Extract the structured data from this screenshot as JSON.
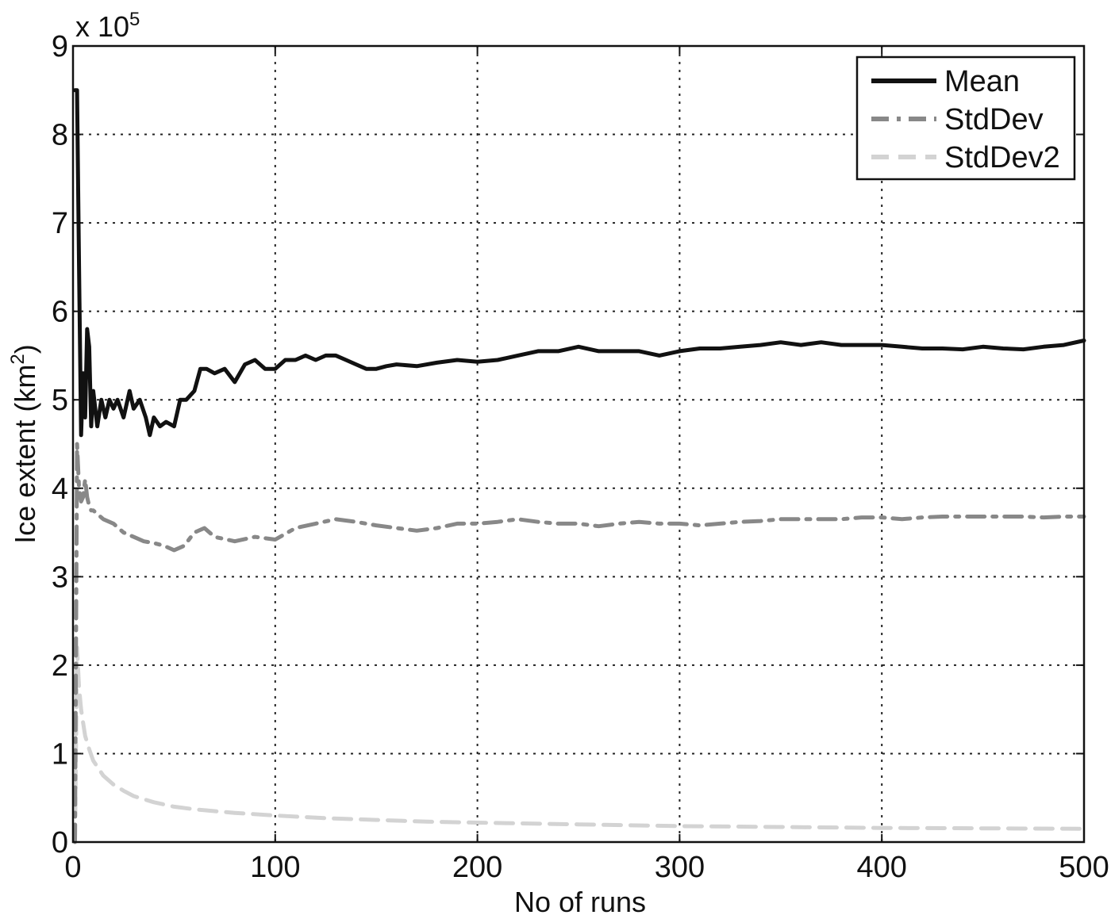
{
  "chart_data": {
    "type": "line",
    "xlabel": "No of runs",
    "ylabel_main": "Ice extent (km",
    "ylabel_sup": "2",
    "ylabel_end": ")",
    "y_multiplier": {
      "base": "x 10",
      "exp": "5"
    },
    "xlim": [
      0,
      500
    ],
    "ylim": [
      0,
      9
    ],
    "xticks": [
      0,
      100,
      200,
      300,
      400,
      500
    ],
    "yticks": [
      0,
      1,
      2,
      3,
      4,
      5,
      6,
      7,
      8,
      9
    ],
    "xtick_labels": [
      "0",
      "100",
      "200",
      "300",
      "400",
      "500"
    ],
    "ytick_labels": [
      "0",
      "1",
      "2",
      "3",
      "4",
      "5",
      "6",
      "7",
      "8",
      "9"
    ],
    "grid": true,
    "legend_position": "top-right",
    "series": [
      {
        "name": "Mean",
        "color": "#111111",
        "style": "solid",
        "x": [
          1,
          2,
          3,
          4,
          5,
          6,
          7,
          8,
          9,
          10,
          12,
          14,
          16,
          18,
          20,
          22,
          25,
          28,
          30,
          33,
          36,
          38,
          40,
          43,
          46,
          50,
          53,
          56,
          60,
          63,
          66,
          70,
          75,
          80,
          85,
          90,
          95,
          100,
          105,
          110,
          115,
          120,
          125,
          130,
          135,
          140,
          145,
          150,
          155,
          160,
          170,
          180,
          190,
          200,
          210,
          220,
          230,
          240,
          250,
          260,
          270,
          280,
          290,
          300,
          310,
          320,
          330,
          340,
          350,
          360,
          370,
          380,
          390,
          400,
          410,
          420,
          430,
          440,
          450,
          460,
          470,
          480,
          490,
          500
        ],
        "y": [
          8.5,
          8.5,
          6.5,
          4.6,
          5.3,
          4.8,
          5.8,
          5.6,
          4.7,
          5.1,
          4.7,
          5.0,
          4.8,
          5.0,
          4.9,
          5.0,
          4.8,
          5.1,
          4.9,
          5.0,
          4.8,
          4.6,
          4.8,
          4.7,
          4.75,
          4.7,
          5.0,
          5.0,
          5.1,
          5.35,
          5.35,
          5.3,
          5.35,
          5.2,
          5.4,
          5.45,
          5.35,
          5.35,
          5.45,
          5.45,
          5.5,
          5.45,
          5.5,
          5.5,
          5.45,
          5.4,
          5.35,
          5.35,
          5.38,
          5.4,
          5.38,
          5.42,
          5.45,
          5.43,
          5.45,
          5.5,
          5.55,
          5.55,
          5.6,
          5.55,
          5.55,
          5.55,
          5.5,
          5.55,
          5.58,
          5.58,
          5.6,
          5.62,
          5.65,
          5.62,
          5.65,
          5.62,
          5.62,
          5.62,
          5.6,
          5.58,
          5.58,
          5.57,
          5.6,
          5.58,
          5.57,
          5.6,
          5.62,
          5.67
        ]
      },
      {
        "name": "StdDev",
        "color": "#888888",
        "style": "dashdot",
        "x": [
          1,
          2,
          3,
          4,
          5,
          6,
          7,
          8,
          9,
          10,
          15,
          20,
          25,
          30,
          35,
          40,
          45,
          50,
          55,
          60,
          65,
          70,
          80,
          90,
          100,
          110,
          120,
          130,
          140,
          150,
          160,
          170,
          180,
          190,
          200,
          210,
          220,
          230,
          240,
          250,
          260,
          270,
          280,
          290,
          300,
          310,
          320,
          330,
          340,
          350,
          360,
          370,
          380,
          390,
          400,
          410,
          420,
          430,
          440,
          450,
          460,
          470,
          480,
          490,
          500
        ],
        "y": [
          0.0,
          4.5,
          4.0,
          3.85,
          3.9,
          4.1,
          3.9,
          3.8,
          3.75,
          3.75,
          3.65,
          3.6,
          3.5,
          3.45,
          3.4,
          3.38,
          3.35,
          3.3,
          3.35,
          3.5,
          3.55,
          3.45,
          3.4,
          3.45,
          3.42,
          3.55,
          3.6,
          3.65,
          3.62,
          3.58,
          3.55,
          3.52,
          3.55,
          3.6,
          3.6,
          3.62,
          3.65,
          3.62,
          3.6,
          3.6,
          3.57,
          3.6,
          3.62,
          3.6,
          3.6,
          3.58,
          3.6,
          3.62,
          3.63,
          3.65,
          3.65,
          3.65,
          3.65,
          3.67,
          3.67,
          3.65,
          3.67,
          3.68,
          3.68,
          3.68,
          3.68,
          3.68,
          3.67,
          3.68,
          3.68
        ]
      },
      {
        "name": "StdDev2",
        "color": "#d3d3d3",
        "style": "dashed",
        "x": [
          1,
          2,
          3,
          4,
          5,
          6,
          8,
          10,
          15,
          20,
          25,
          30,
          40,
          50,
          60,
          70,
          80,
          100,
          125,
          150,
          175,
          200,
          250,
          300,
          350,
          400,
          450,
          500
        ],
        "y": [
          0.0,
          2.2,
          1.75,
          1.5,
          1.35,
          1.2,
          1.05,
          0.92,
          0.75,
          0.65,
          0.58,
          0.52,
          0.45,
          0.4,
          0.37,
          0.35,
          0.33,
          0.3,
          0.27,
          0.25,
          0.23,
          0.22,
          0.2,
          0.18,
          0.17,
          0.16,
          0.155,
          0.15
        ]
      }
    ]
  }
}
